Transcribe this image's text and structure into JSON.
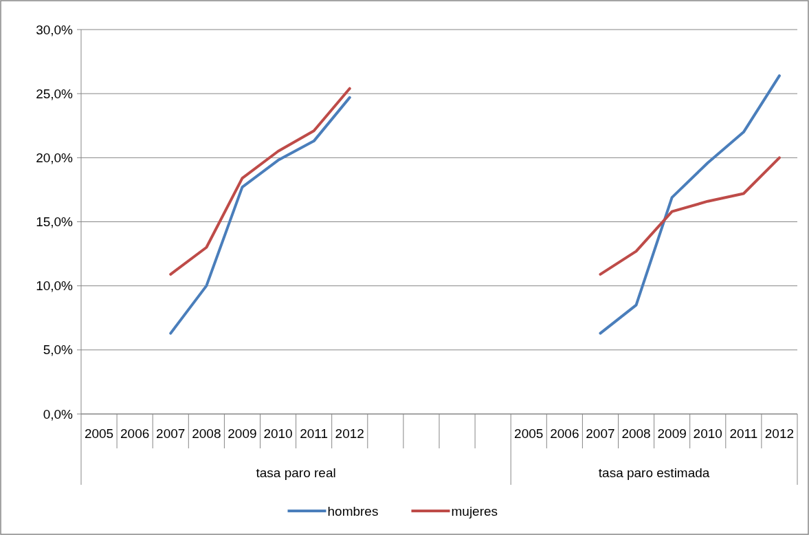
{
  "chart_data": {
    "type": "line",
    "categories": [
      "2005",
      "2006",
      "2007",
      "2008",
      "2009",
      "2010",
      "2011",
      "2012",
      null,
      null,
      null,
      null,
      "2005",
      "2006",
      "2007",
      "2008",
      "2009",
      "2010",
      "2011",
      "2012"
    ],
    "series": [
      {
        "name": "hombres",
        "color": "#4a7ebb",
        "values": [
          null,
          null,
          6.3,
          10.0,
          17.7,
          19.8,
          21.3,
          24.7,
          null,
          null,
          null,
          null,
          null,
          null,
          6.3,
          8.5,
          16.9,
          19.6,
          22.0,
          26.4
        ]
      },
      {
        "name": "mujeres",
        "color": "#be4b48",
        "values": [
          null,
          null,
          10.9,
          13.0,
          18.4,
          20.5,
          22.1,
          25.4,
          null,
          null,
          null,
          null,
          null,
          null,
          10.9,
          12.7,
          15.8,
          16.6,
          17.2,
          20.0
        ]
      }
    ],
    "annotations": [
      "tasa paro real",
      "tasa paro estimada"
    ],
    "ylim": [
      0,
      30
    ],
    "yticks": [
      {
        "value": 0,
        "label": "0,0%"
      },
      {
        "value": 5,
        "label": "5,0%"
      },
      {
        "value": 10,
        "label": "10,0%"
      },
      {
        "value": 15,
        "label": "15,0%"
      },
      {
        "value": 20,
        "label": "20,0%"
      },
      {
        "value": 25,
        "label": "25,0%"
      },
      {
        "value": 30,
        "label": "30,0%"
      }
    ],
    "grid": "y",
    "legend": "bottom",
    "marker": "none",
    "line_style": "solid"
  }
}
